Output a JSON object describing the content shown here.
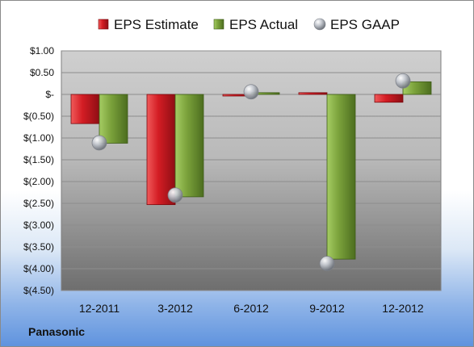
{
  "chart_data": {
    "type": "bar",
    "categories": [
      "12-2011",
      "3-2012",
      "6-2012",
      "9-2012",
      "12-2012"
    ],
    "series": [
      {
        "name": "EPS Estimate",
        "kind": "bar",
        "color": "#d01f26",
        "values": [
          -0.67,
          -2.53,
          -0.02,
          0.04,
          -0.18
        ]
      },
      {
        "name": "EPS Actual",
        "kind": "bar",
        "color": "#7aa33a",
        "values": [
          -1.12,
          -2.35,
          0.04,
          -3.78,
          0.29
        ]
      },
      {
        "name": "EPS GAAP",
        "kind": "marker",
        "color": "#b8bcc4",
        "values": [
          -1.11,
          -2.31,
          0.06,
          -3.88,
          0.31
        ]
      }
    ],
    "yticks": [
      "$1.00",
      "$0.50",
      "$-",
      "$(0.50)",
      "$(1.00)",
      "$(1.50)",
      "$(2.00)",
      "$(2.50)",
      "$(3.00)",
      "$(3.50)",
      "$(4.00)",
      "$(4.50)"
    ],
    "ylim": [
      -4.5,
      1.0
    ],
    "ystep": 0.5,
    "grid": true,
    "legend_position": "top",
    "title": "",
    "xlabel": "",
    "ylabel": ""
  },
  "footer": {
    "company": "Panasonic"
  }
}
